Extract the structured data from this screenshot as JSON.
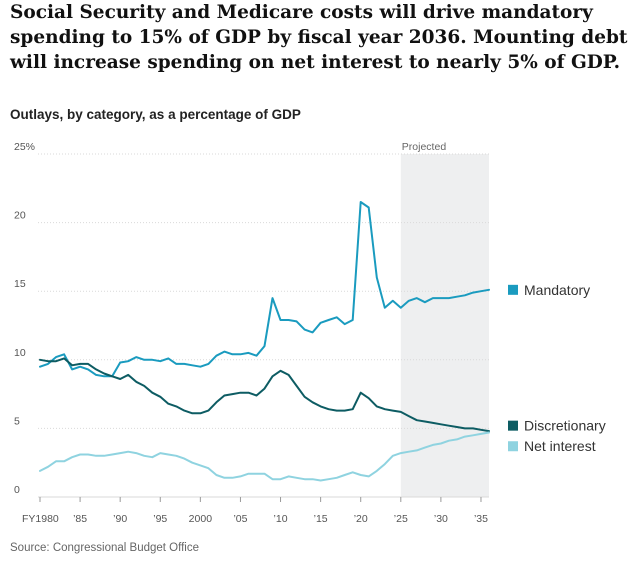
{
  "headline": "Social Security and Medicare costs will drive mandatory spending to 15% of GDP by fiscal year 2036. Mounting debt will increase spending on net interest to nearly 5% of GDP.",
  "subtitle": "Outlays, by category, as a percentage of GDP",
  "source": "Source: Congressional Budget Office",
  "projected_label": "Projected",
  "colors": {
    "Mandatory": "#1a9bbf",
    "Discretionary": "#0d5c63",
    "Net interest": "#8fd3e0",
    "projected_shade": "#eeeff0",
    "grid": "#d9d9d9"
  },
  "chart_data": {
    "type": "line",
    "title": "Outlays, by category, as a percentage of GDP",
    "xlabel": "",
    "ylabel": "",
    "xlim": [
      1980,
      2036
    ],
    "ylim": [
      0,
      25
    ],
    "projected_from": 2025,
    "y_ticks": [
      {
        "value": 0,
        "label": "0"
      },
      {
        "value": 5,
        "label": "5"
      },
      {
        "value": 10,
        "label": "10"
      },
      {
        "value": 15,
        "label": "15"
      },
      {
        "value": 20,
        "label": "20"
      },
      {
        "value": 25,
        "label": "25%"
      }
    ],
    "x_ticks": [
      {
        "value": 1980,
        "label": "FY1980"
      },
      {
        "value": 1985,
        "label": "’85"
      },
      {
        "value": 1990,
        "label": "’90"
      },
      {
        "value": 1995,
        "label": "’95"
      },
      {
        "value": 2000,
        "label": "2000"
      },
      {
        "value": 2005,
        "label": "’05"
      },
      {
        "value": 2010,
        "label": "’10"
      },
      {
        "value": 2015,
        "label": "’15"
      },
      {
        "value": 2020,
        "label": "’20"
      },
      {
        "value": 2025,
        "label": "’25"
      },
      {
        "value": 2030,
        "label": "’30"
      },
      {
        "value": 2035,
        "label": "’35"
      }
    ],
    "x": [
      1980,
      1981,
      1982,
      1983,
      1984,
      1985,
      1986,
      1987,
      1988,
      1989,
      1990,
      1991,
      1992,
      1993,
      1994,
      1995,
      1996,
      1997,
      1998,
      1999,
      2000,
      2001,
      2002,
      2003,
      2004,
      2005,
      2006,
      2007,
      2008,
      2009,
      2010,
      2011,
      2012,
      2013,
      2014,
      2015,
      2016,
      2017,
      2018,
      2019,
      2020,
      2021,
      2022,
      2023,
      2024,
      2025,
      2026,
      2027,
      2028,
      2029,
      2030,
      2031,
      2032,
      2033,
      2034,
      2035,
      2036
    ],
    "series": [
      {
        "name": "Mandatory",
        "values": [
          9.5,
          9.7,
          10.2,
          10.4,
          9.3,
          9.5,
          9.3,
          8.9,
          8.8,
          8.8,
          9.8,
          9.9,
          10.2,
          10.0,
          10.0,
          9.9,
          10.1,
          9.7,
          9.7,
          9.6,
          9.5,
          9.7,
          10.3,
          10.6,
          10.4,
          10.4,
          10.5,
          10.3,
          11.0,
          14.5,
          12.9,
          12.9,
          12.8,
          12.2,
          12.0,
          12.7,
          12.9,
          13.1,
          12.6,
          12.9,
          21.5,
          21.1,
          16.0,
          13.8,
          14.3,
          13.8,
          14.3,
          14.5,
          14.2,
          14.5,
          14.5,
          14.5,
          14.6,
          14.7,
          14.9,
          15.0,
          15.1
        ]
      },
      {
        "name": "Discretionary",
        "values": [
          10.0,
          9.9,
          9.9,
          10.1,
          9.6,
          9.7,
          9.7,
          9.3,
          9.0,
          8.8,
          8.6,
          8.9,
          8.4,
          8.1,
          7.6,
          7.3,
          6.8,
          6.6,
          6.3,
          6.1,
          6.1,
          6.3,
          6.9,
          7.4,
          7.5,
          7.6,
          7.6,
          7.4,
          7.9,
          8.8,
          9.2,
          8.9,
          8.1,
          7.3,
          6.9,
          6.6,
          6.4,
          6.3,
          6.3,
          6.4,
          7.6,
          7.2,
          6.6,
          6.4,
          6.3,
          6.2,
          5.9,
          5.6,
          5.5,
          5.4,
          5.3,
          5.2,
          5.1,
          5.0,
          5.0,
          4.9,
          4.8
        ]
      },
      {
        "name": "Net interest",
        "values": [
          1.9,
          2.2,
          2.6,
          2.6,
          2.9,
          3.1,
          3.1,
          3.0,
          3.0,
          3.1,
          3.2,
          3.3,
          3.2,
          3.0,
          2.9,
          3.2,
          3.1,
          3.0,
          2.8,
          2.5,
          2.3,
          2.1,
          1.6,
          1.4,
          1.4,
          1.5,
          1.7,
          1.7,
          1.7,
          1.3,
          1.3,
          1.5,
          1.4,
          1.3,
          1.3,
          1.2,
          1.3,
          1.4,
          1.6,
          1.8,
          1.6,
          1.5,
          1.9,
          2.4,
          3.0,
          3.2,
          3.3,
          3.4,
          3.6,
          3.8,
          3.9,
          4.1,
          4.2,
          4.4,
          4.5,
          4.6,
          4.7
        ]
      }
    ]
  }
}
